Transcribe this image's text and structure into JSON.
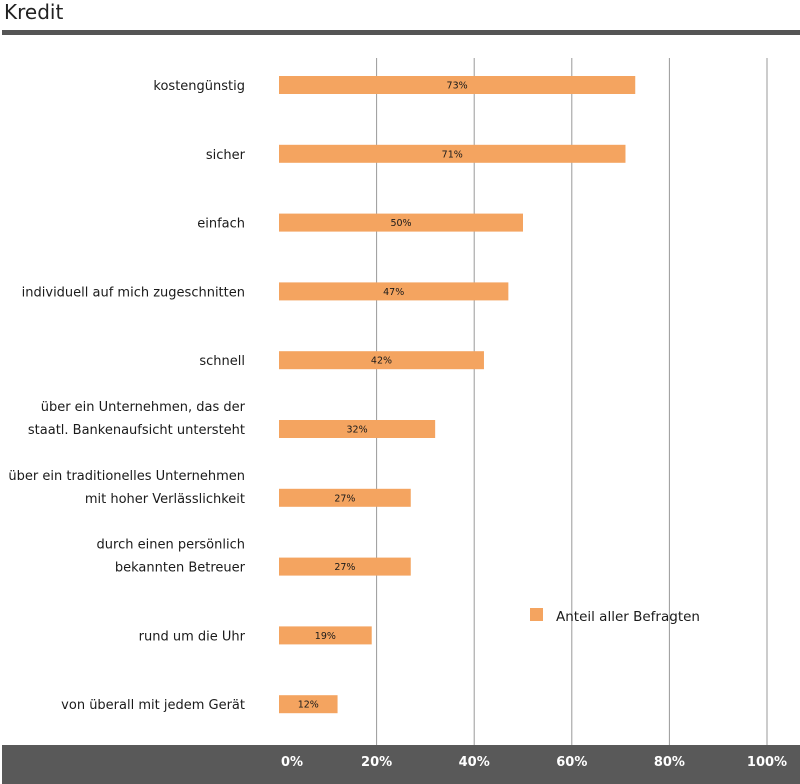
{
  "title": "Kredit",
  "chart_data": {
    "type": "bar",
    "orientation": "horizontal",
    "categories": [
      [
        "kostengünstig"
      ],
      [
        "sicher"
      ],
      [
        "einfach"
      ],
      [
        "individuell auf mich zugeschnitten"
      ],
      [
        "schnell"
      ],
      [
        "über ein Unternehmen, das der",
        "staatl. Bankenaufsicht untersteht"
      ],
      [
        "über ein traditionelles Unternehmen",
        "mit hoher Verlässlichkeit"
      ],
      [
        "durch einen persönlich",
        "bekannten Betreuer"
      ],
      [
        "rund um die Uhr"
      ],
      [
        "von überall mit jedem Gerät"
      ]
    ],
    "series": [
      {
        "name": "Anteil aller Befragten",
        "values": [
          73,
          71,
          50,
          47,
          42,
          32,
          27,
          27,
          19,
          12
        ],
        "labels": [
          "73%",
          "71%",
          "50%",
          "47%",
          "42%",
          "32%",
          "27%",
          "27%",
          "19%",
          "12%"
        ]
      }
    ],
    "xlim": [
      0,
      100
    ],
    "xticks": [
      "0%",
      "20%",
      "40%",
      "60%",
      "80%",
      "100%"
    ],
    "grid": true,
    "legend_position": "lower-right",
    "colors": {
      "bar": "#F4A460",
      "grid": "#999999",
      "axis_band": "#595959",
      "title_rule": "#555555"
    }
  }
}
